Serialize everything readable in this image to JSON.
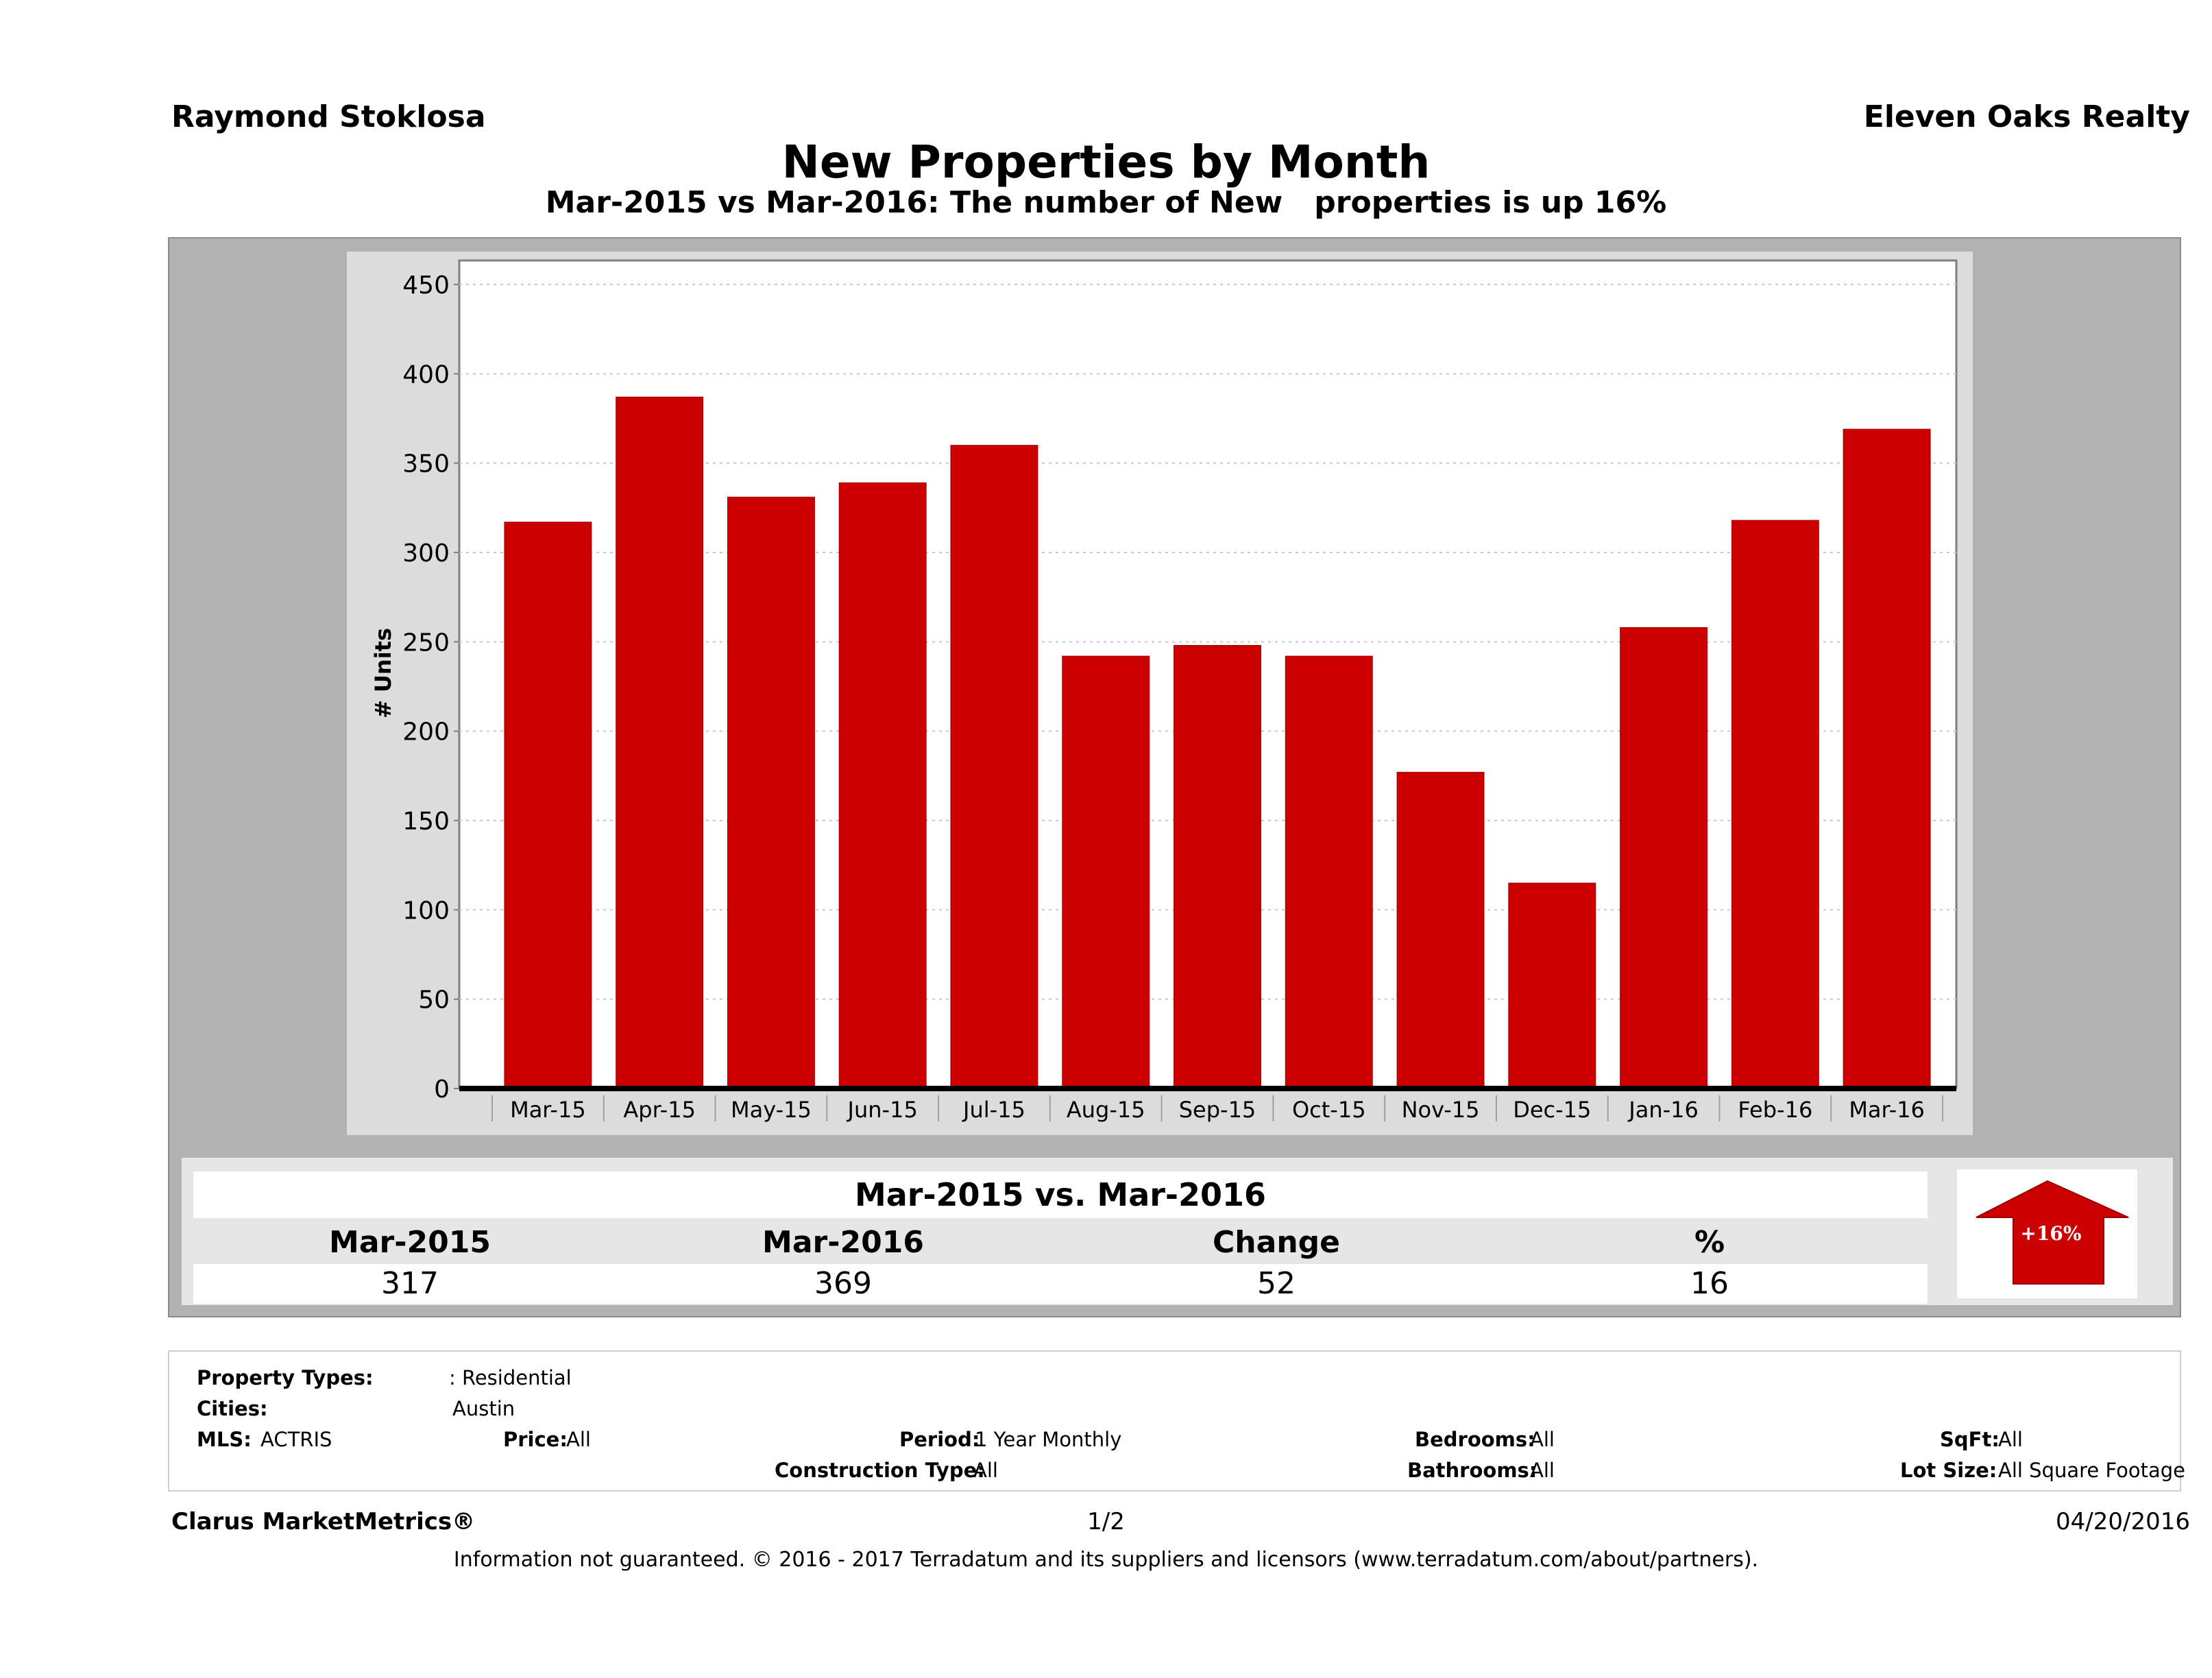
{
  "header": {
    "agent_name": "Raymond Stoklosa",
    "brokerage": "Eleven Oaks Realty",
    "title": "New Properties by Month",
    "subtitle": "Mar-2015 vs Mar-2016: The number of New   properties is up 16%"
  },
  "chart_data": {
    "type": "bar",
    "title": "New Properties by Month",
    "subtitle": "Mar-2015 vs Mar-2016: The number of New   properties is up 16%",
    "xlabel": "",
    "ylabel": "# Units",
    "ylim": [
      0,
      450
    ],
    "yticks": [
      0,
      50,
      100,
      150,
      200,
      250,
      300,
      350,
      400,
      450
    ],
    "grid": true,
    "bar_color": "#cc0000",
    "categories": [
      "Mar-15",
      "Apr-15",
      "May-15",
      "Jun-15",
      "Jul-15",
      "Aug-15",
      "Sep-15",
      "Oct-15",
      "Nov-15",
      "Dec-15",
      "Jan-16",
      "Feb-16",
      "Mar-16"
    ],
    "values": [
      317,
      387,
      331,
      339,
      360,
      242,
      248,
      242,
      177,
      115,
      258,
      318,
      369
    ]
  },
  "summary": {
    "title": "Mar-2015 vs. Mar-2016",
    "columns": [
      {
        "header": "Mar-2015",
        "value": "317"
      },
      {
        "header": "Mar-2016",
        "value": "369"
      },
      {
        "header": "Change",
        "value": "52"
      },
      {
        "header": "%",
        "value": "16"
      }
    ],
    "badge": {
      "label": "+16%",
      "direction": "up",
      "color": "#cc0000"
    }
  },
  "filters": {
    "property_types": {
      "label": "Property Types:",
      "value": ": Residential"
    },
    "cities": {
      "label": "Cities:",
      "value": "Austin"
    },
    "mls": {
      "label": "MLS:",
      "value": "ACTRIS"
    },
    "price": {
      "label": "Price:",
      "value": "All"
    },
    "period": {
      "label": "Period:",
      "value": "1 Year Monthly"
    },
    "construction_type": {
      "label": "Construction Type:",
      "value": "All"
    },
    "bedrooms": {
      "label": "Bedrooms:",
      "value": "All"
    },
    "bathrooms": {
      "label": "Bathrooms:",
      "value": "All"
    },
    "sqft": {
      "label": "SqFt:",
      "value": "All"
    },
    "lot_size": {
      "label": "Lot Size:",
      "value": "All Square Footage"
    }
  },
  "footer": {
    "brand": "Clarus MarketMetrics®",
    "page": "1/2",
    "date": "04/20/2016",
    "disclaimer": "Information not guaranteed. © 2016 - 2017 Terradatum and its suppliers and licensors (www.terradatum.com/about/partners)."
  }
}
